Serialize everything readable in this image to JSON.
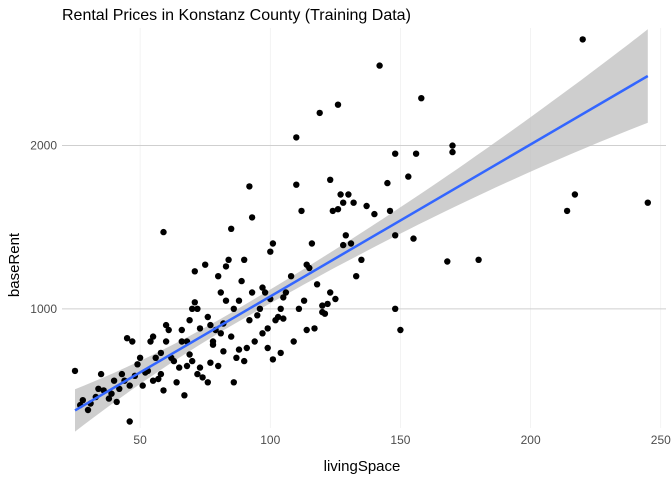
{
  "chart_data": {
    "type": "scatter",
    "title": "Rental Prices in Konstanz County (Training Data)",
    "xlabel": "livingSpace",
    "ylabel": "baseRent",
    "xlim": [
      20,
      252
    ],
    "ylim": [
      270,
      2720
    ],
    "xticks": [
      50,
      100,
      150,
      200,
      250
    ],
    "yticks": [
      1000,
      2000
    ],
    "grid": true,
    "colors": {
      "points": "#000000",
      "line": "#3366ff",
      "band": "#bdbdbd"
    },
    "regression": {
      "intercept": 145,
      "slope": 9.31,
      "x_range": [
        25,
        245
      ],
      "band_halfwidth_ends": 130,
      "band_halfwidth_mid": 40,
      "band_center_x": 85
    },
    "points": [
      [
        25,
        620
      ],
      [
        27,
        410
      ],
      [
        28,
        440
      ],
      [
        30,
        380
      ],
      [
        31,
        420
      ],
      [
        33,
        460
      ],
      [
        34,
        510
      ],
      [
        35,
        600
      ],
      [
        36,
        500
      ],
      [
        38,
        450
      ],
      [
        39,
        480
      ],
      [
        40,
        560
      ],
      [
        41,
        430
      ],
      [
        42,
        510
      ],
      [
        43,
        600
      ],
      [
        44,
        560
      ],
      [
        45,
        820
      ],
      [
        46,
        310
      ],
      [
        46,
        530
      ],
      [
        47,
        800
      ],
      [
        48,
        590
      ],
      [
        49,
        660
      ],
      [
        50,
        700
      ],
      [
        51,
        530
      ],
      [
        52,
        610
      ],
      [
        53,
        620
      ],
      [
        54,
        800
      ],
      [
        55,
        830
      ],
      [
        55,
        560
      ],
      [
        56,
        700
      ],
      [
        57,
        570
      ],
      [
        58,
        600
      ],
      [
        58,
        730
      ],
      [
        59,
        500
      ],
      [
        59,
        1470
      ],
      [
        60,
        900
      ],
      [
        60,
        800
      ],
      [
        61,
        870
      ],
      [
        62,
        700
      ],
      [
        63,
        680
      ],
      [
        64,
        550
      ],
      [
        65,
        640
      ],
      [
        66,
        800
      ],
      [
        66,
        870
      ],
      [
        67,
        470
      ],
      [
        68,
        650
      ],
      [
        68,
        800
      ],
      [
        69,
        720
      ],
      [
        69,
        930
      ],
      [
        70,
        680
      ],
      [
        70,
        1000
      ],
      [
        71,
        1040
      ],
      [
        71,
        1230
      ],
      [
        72,
        600
      ],
      [
        72,
        1000
      ],
      [
        73,
        880
      ],
      [
        73,
        640
      ],
      [
        74,
        580
      ],
      [
        75,
        1270
      ],
      [
        76,
        950
      ],
      [
        76,
        550
      ],
      [
        77,
        900
      ],
      [
        77,
        670
      ],
      [
        78,
        780
      ],
      [
        78,
        800
      ],
      [
        79,
        870
      ],
      [
        80,
        650
      ],
      [
        80,
        1200
      ],
      [
        81,
        850
      ],
      [
        81,
        1100
      ],
      [
        82,
        740
      ],
      [
        82,
        910
      ],
      [
        83,
        1050
      ],
      [
        83,
        1260
      ],
      [
        84,
        1300
      ],
      [
        85,
        1490
      ],
      [
        85,
        830
      ],
      [
        86,
        1000
      ],
      [
        86,
        550
      ],
      [
        87,
        700
      ],
      [
        88,
        750
      ],
      [
        88,
        1050
      ],
      [
        89,
        1170
      ],
      [
        90,
        1300
      ],
      [
        90,
        680
      ],
      [
        91,
        760
      ],
      [
        92,
        930
      ],
      [
        92,
        1750
      ],
      [
        93,
        1100
      ],
      [
        93,
        1560
      ],
      [
        94,
        800
      ],
      [
        95,
        960
      ],
      [
        96,
        1000
      ],
      [
        97,
        850
      ],
      [
        97,
        1130
      ],
      [
        98,
        1100
      ],
      [
        99,
        880
      ],
      [
        99,
        760
      ],
      [
        100,
        1350
      ],
      [
        100,
        1060
      ],
      [
        101,
        1400
      ],
      [
        101,
        690
      ],
      [
        102,
        930
      ],
      [
        103,
        950
      ],
      [
        104,
        1000
      ],
      [
        104,
        730
      ],
      [
        105,
        940
      ],
      [
        105,
        1070
      ],
      [
        106,
        1100
      ],
      [
        108,
        1200
      ],
      [
        109,
        800
      ],
      [
        110,
        2050
      ],
      [
        110,
        1760
      ],
      [
        111,
        1000
      ],
      [
        112,
        1600
      ],
      [
        113,
        1050
      ],
      [
        114,
        1270
      ],
      [
        114,
        870
      ],
      [
        115,
        1250
      ],
      [
        116,
        1400
      ],
      [
        117,
        880
      ],
      [
        118,
        1150
      ],
      [
        119,
        2200
      ],
      [
        120,
        1020
      ],
      [
        120,
        980
      ],
      [
        121,
        970
      ],
      [
        122,
        1030
      ],
      [
        123,
        1100
      ],
      [
        123,
        1790
      ],
      [
        124,
        1600
      ],
      [
        125,
        1060
      ],
      [
        126,
        1610
      ],
      [
        126,
        2250
      ],
      [
        127,
        1700
      ],
      [
        128,
        1390
      ],
      [
        128,
        1650
      ],
      [
        129,
        1450
      ],
      [
        130,
        1700
      ],
      [
        131,
        1400
      ],
      [
        132,
        1650
      ],
      [
        133,
        1200
      ],
      [
        135,
        1300
      ],
      [
        137,
        1630
      ],
      [
        140,
        1580
      ],
      [
        142,
        2490
      ],
      [
        145,
        1770
      ],
      [
        146,
        1600
      ],
      [
        148,
        1950
      ],
      [
        148,
        1450
      ],
      [
        148,
        1000
      ],
      [
        150,
        870
      ],
      [
        153,
        1810
      ],
      [
        155,
        1430
      ],
      [
        156,
        1950
      ],
      [
        158,
        2290
      ],
      [
        168,
        1290
      ],
      [
        170,
        2000
      ],
      [
        170,
        1960
      ],
      [
        180,
        1300
      ],
      [
        214,
        1600
      ],
      [
        217,
        1700
      ],
      [
        220,
        2650
      ],
      [
        245,
        1650
      ]
    ]
  }
}
